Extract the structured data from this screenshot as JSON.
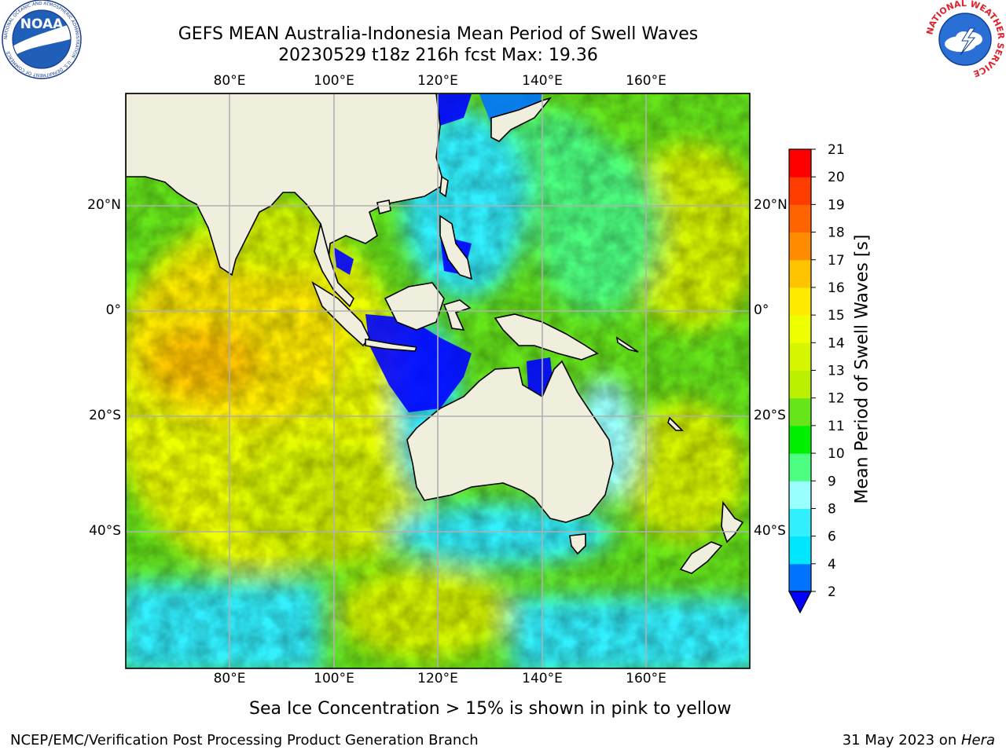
{
  "header": {
    "title_line1": "GEFS MEAN Australia-Indonesia Mean Period of Swell Waves",
    "title_line2": "20230529 t18z 216h fcst   Max: 19.36"
  },
  "logos": {
    "noaa": {
      "text": "NOAA",
      "ring_text": "NATIONAL OCEANIC AND ATMOSPHERIC ADMINISTRATION · U.S. DEPARTMENT OF COMMERCE"
    },
    "nws": {
      "ring_text": "NATIONAL WEATHER SERVICE"
    }
  },
  "map": {
    "longitudes": [
      "80°E",
      "100°E",
      "120°E",
      "140°E",
      "160°E"
    ],
    "latitudes": [
      "20°N",
      "0°",
      "20°S",
      "40°S"
    ]
  },
  "colorbar": {
    "label": "Mean Period of Swell Waves [s]",
    "ticks": [
      "2",
      "4",
      "6",
      "8",
      "9",
      "10",
      "11",
      "12",
      "13",
      "14",
      "15",
      "16",
      "17",
      "18",
      "19",
      "20",
      "21"
    ],
    "colors": [
      "#0073ff",
      "#00e6ff",
      "#33f0ff",
      "#99ffff",
      "#4dff80",
      "#00f000",
      "#66e61a",
      "#bbf000",
      "#d6f500",
      "#eeff00",
      "#ffeb00",
      "#ffc300",
      "#ff8c00",
      "#ff6400",
      "#ff3c00",
      "#ff0000"
    ],
    "under_color": "#0000ff"
  },
  "caption": "Sea Ice Concentration > 15% is shown in pink to yellow",
  "footer": {
    "left": "NCEP/EMC/Verification Post Processing Product Generation Branch",
    "right_prefix": "31 May 2023 on ",
    "right_host": "Hera"
  }
}
